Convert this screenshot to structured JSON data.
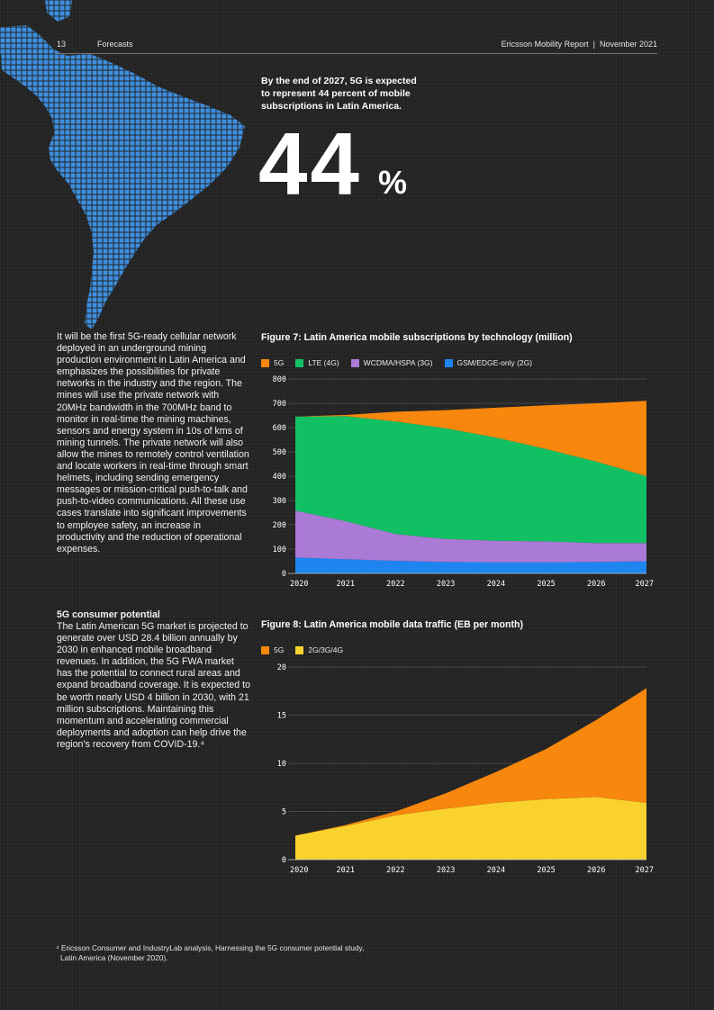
{
  "header": {
    "page_number": "13",
    "section": "Forecasts",
    "report": "Ericsson Mobility Report  |  November 2021"
  },
  "highlight": {
    "text": "By the end of 2027, 5G is expected to represent 44 percent of mobile subscriptions in Latin America.",
    "big_number": "44",
    "unit": "%"
  },
  "body": {
    "paragraph1": "It will be the first 5G-ready cellular network deployed in an underground mining production environment in Latin America and emphasizes the possibilities for private networks in the industry and the region. The mines will use the private network with 20MHz bandwidth in the 700MHz band to monitor in real-time the mining machines, sensors and energy system in 10s of kms of mining tunnels. The private network will also allow the mines to remotely control ventilation and locate workers in real-time through smart helmets, including sending emergency messages or mission-critical push-to-talk and push-to-video communications. All these use cases translate into significant improvements to employee safety, an increase in productivity and the reduction of operational expenses.",
    "subheading": "5G consumer potential",
    "paragraph2": "The Latin American 5G market is projected to generate over USD 28.4 billion annually by 2030 in enhanced mobile broadband revenues. In addition, the 5G FWA market has the potential to connect rural areas and expand broadband coverage. It is expected to be worth nearly USD 4 billion in 2030, with 21 million subscriptions. Maintaining this momentum and accelerating commercial deployments and adoption can help drive the region’s recovery from COVID-19.⁴"
  },
  "footnote": {
    "line1": "⁴ Ericsson Consumer and IndustryLab analysis, Harnessing the 5G consumer potential study,",
    "line2": "Latin America (November 2020)."
  },
  "colors": {
    "g5": "#f7870d",
    "lte": "#12c064",
    "wcdma": "#ab79d6",
    "gsm": "#1e85f0",
    "legacy": "#fad22d"
  },
  "chart_data": [
    {
      "type": "area",
      "stacked": true,
      "title": "Figure 7: Latin America mobile subscriptions by technology (million)",
      "categories": [
        "2020",
        "2021",
        "2022",
        "2023",
        "2024",
        "2025",
        "2026",
        "2027"
      ],
      "ylim": [
        0,
        800
      ],
      "yticks": [
        "0",
        "100",
        "200",
        "300",
        "400",
        "500",
        "600",
        "700",
        "800"
      ],
      "legend": [
        "5G",
        "LTE (4G)",
        "WCDMA/HSPA (3G)",
        "GSM/EDGE-only (2G)"
      ],
      "series": [
        {
          "name": "GSM/EDGE-only (2G)",
          "values": [
            65,
            58,
            52,
            47,
            46,
            46,
            47,
            50
          ]
        },
        {
          "name": "WCDMA/HSPA (3G)",
          "values": [
            193,
            157,
            110,
            95,
            88,
            86,
            78,
            75
          ]
        },
        {
          "name": "LTE (4G)",
          "values": [
            387,
            432,
            463,
            455,
            425,
            380,
            335,
            275
          ]
        },
        {
          "name": "5G",
          "values": [
            0,
            5,
            40,
            75,
            123,
            180,
            240,
            310
          ]
        }
      ]
    },
    {
      "type": "area",
      "stacked": true,
      "title": "Figure 8: Latin America mobile data traffic (EB per month)",
      "categories": [
        "2020",
        "2021",
        "2022",
        "2023",
        "2024",
        "2025",
        "2026",
        "2027"
      ],
      "ylim": [
        0,
        20
      ],
      "yticks": [
        "0",
        "5",
        "10",
        "15",
        "20"
      ],
      "legend": [
        "5G",
        "2G/3G/4G"
      ],
      "series": [
        {
          "name": "2G/3G/4G",
          "values": [
            2.5,
            3.5,
            4.6,
            5.3,
            5.9,
            6.3,
            6.5,
            5.9
          ]
        },
        {
          "name": "5G",
          "values": [
            0,
            0.1,
            0.4,
            1.6,
            3.2,
            5.2,
            8.0,
            11.9
          ]
        }
      ]
    }
  ]
}
